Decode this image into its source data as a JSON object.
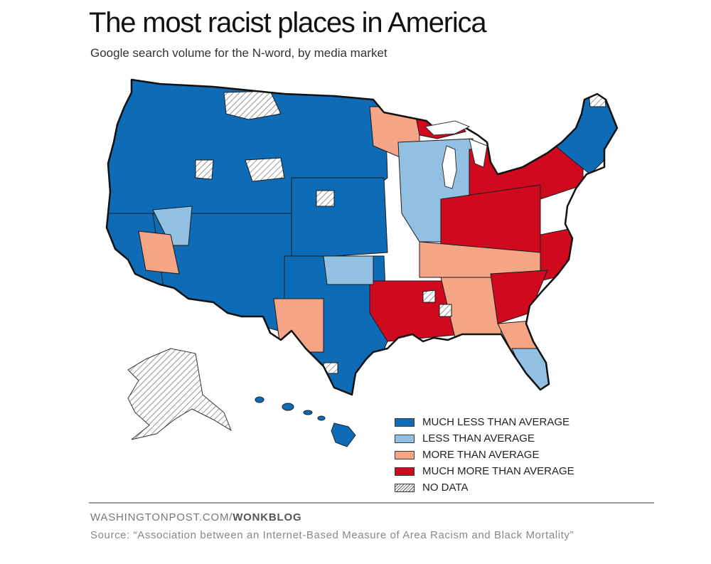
{
  "header": {
    "title": "The most racist places in America",
    "subtitle": "Google search volume for the N-word, by media market"
  },
  "legend": {
    "items": [
      {
        "key": "much_less",
        "label": "MUCH LESS THAN AVERAGE",
        "color": "#0e6bb5"
      },
      {
        "key": "less",
        "label": "LESS THAN AVERAGE",
        "color": "#91c0e2"
      },
      {
        "key": "more",
        "label": "MORE THAN AVERAGE",
        "color": "#f3a585"
      },
      {
        "key": "much_more",
        "label": "MUCH MORE THAN AVERAGE",
        "color": "#cf0a1f"
      },
      {
        "key": "no_data",
        "label": "NO DATA",
        "color": "hatched"
      }
    ]
  },
  "map": {
    "region": "United States (contiguous), Alaska, Hawaii",
    "units": "media markets",
    "markets": [
      {
        "area": "Pacific Northwest and Mountain West",
        "category": "much_less"
      },
      {
        "area": "California coast",
        "category": "much_less"
      },
      {
        "area": "Southwest",
        "category": "much_less"
      },
      {
        "area": "Great Plains",
        "category": "much_less"
      },
      {
        "area": "Texas",
        "category": "much_less"
      },
      {
        "area": "New England",
        "category": "much_less"
      },
      {
        "area": "Upper Michigan",
        "category": "much_more"
      },
      {
        "area": "Ohio Valley and Appalachia",
        "category": "much_more"
      },
      {
        "area": "Western Pennsylvania and New York",
        "category": "much_more"
      },
      {
        "area": "Lower Mississippi Valley",
        "category": "much_more"
      },
      {
        "area": "Georgia and South Carolina",
        "category": "much_more"
      },
      {
        "area": "Eastern North Carolina",
        "category": "much_more"
      },
      {
        "area": "Western Texas and New Mexico border",
        "category": "more"
      },
      {
        "area": "Southern California desert",
        "category": "more"
      },
      {
        "area": "Minnesota",
        "category": "more"
      },
      {
        "area": "Tennessee and Kentucky",
        "category": "more"
      },
      {
        "area": "Alabama and Mississippi",
        "category": "more"
      },
      {
        "area": "North Florida",
        "category": "more"
      },
      {
        "area": "Nevada",
        "category": "less"
      },
      {
        "area": "Oklahoma",
        "category": "less"
      },
      {
        "area": "Central Florida",
        "category": "less"
      },
      {
        "area": "Wisconsin and Illinois",
        "category": "less"
      },
      {
        "area": "Alaska",
        "category": "no_data"
      },
      {
        "area": "Hawaii",
        "category": "much_less"
      }
    ]
  },
  "footer": {
    "credit_site": "WASHINGTONPOST.COM/",
    "credit_section": "WONKBLOG",
    "source": "Source: “Association between an Internet-Based Measure of Area Racism and Black Mortality”"
  }
}
